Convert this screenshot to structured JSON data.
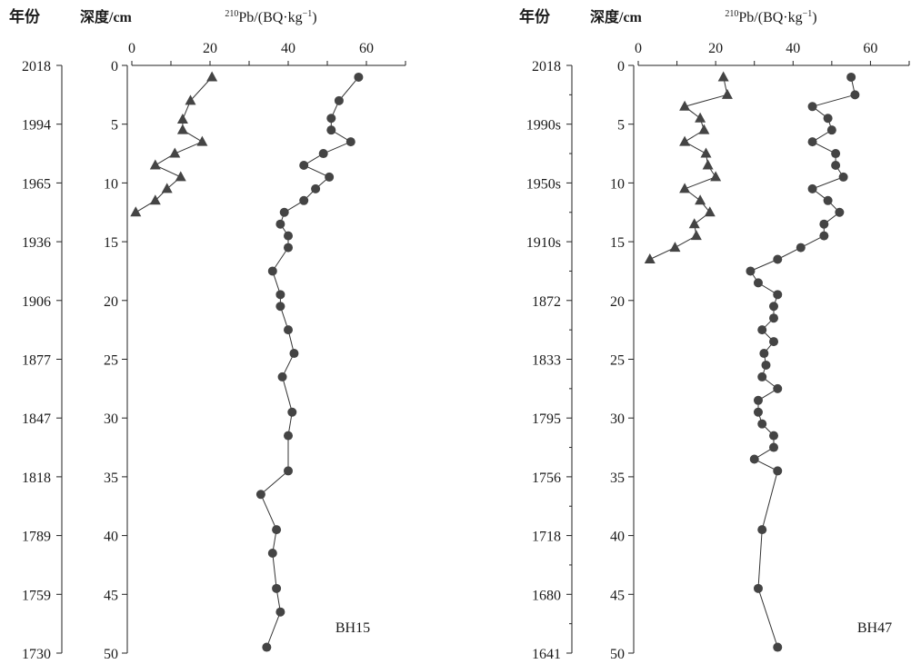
{
  "chart_data": [
    {
      "type": "scatter",
      "panel_label": "BH15",
      "header_year": "年份",
      "header_depth": "深度/cm",
      "x_title_sup": "210",
      "x_title_main": "Pb/(BQ·kg",
      "x_title_exp": "−1",
      "x_title_close": ")",
      "xlim": [
        0,
        70
      ],
      "ylim": [
        0,
        50
      ],
      "x_ticks": [
        0,
        20,
        40,
        60
      ],
      "depth_ticks": [
        0,
        5,
        10,
        15,
        20,
        25,
        30,
        35,
        40,
        45,
        50
      ],
      "year_ticks": [
        "2018",
        "1994",
        "1965",
        "1936",
        "1906",
        "1877",
        "1847",
        "1818",
        "1789",
        "1759",
        "1730"
      ],
      "series": [
        {
          "marker": "triangle",
          "points": [
            [
              20.5,
              1.0
            ],
            [
              15.0,
              3.0
            ],
            [
              13.0,
              4.6
            ],
            [
              13.0,
              5.5
            ],
            [
              18.0,
              6.5
            ],
            [
              11.0,
              7.5
            ],
            [
              6.0,
              8.5
            ],
            [
              12.5,
              9.5
            ],
            [
              9.0,
              10.5
            ],
            [
              6.0,
              11.5
            ],
            [
              1.0,
              12.5
            ]
          ]
        },
        {
          "marker": "circle",
          "points": [
            [
              58.0,
              1.0
            ],
            [
              53.0,
              3.0
            ],
            [
              51.0,
              4.5
            ],
            [
              51.0,
              5.5
            ],
            [
              56.0,
              6.5
            ],
            [
              49.0,
              7.5
            ],
            [
              44.0,
              8.5
            ],
            [
              50.5,
              9.5
            ],
            [
              47.0,
              10.5
            ],
            [
              44.0,
              11.5
            ],
            [
              39.0,
              12.5
            ],
            [
              38.0,
              13.5
            ],
            [
              40.0,
              14.5
            ],
            [
              40.0,
              15.5
            ],
            [
              36.0,
              17.5
            ],
            [
              38.0,
              19.5
            ],
            [
              38.0,
              20.5
            ],
            [
              40.0,
              22.5
            ],
            [
              41.5,
              24.5
            ],
            [
              38.5,
              26.5
            ],
            [
              41.0,
              29.5
            ],
            [
              40.0,
              31.5
            ],
            [
              40.0,
              34.5
            ],
            [
              33.0,
              36.5
            ],
            [
              37.0,
              39.5
            ],
            [
              36.0,
              41.5
            ],
            [
              37.0,
              44.5
            ],
            [
              38.0,
              46.5
            ],
            [
              34.5,
              49.5
            ]
          ]
        }
      ]
    },
    {
      "type": "scatter",
      "panel_label": "BH47",
      "header_year": "年份",
      "header_depth": "深度/cm",
      "x_title_sup": "210",
      "x_title_main": "Pb/(BQ·kg",
      "x_title_exp": "−1",
      "x_title_close": ")",
      "xlim": [
        0,
        70
      ],
      "ylim": [
        0,
        50
      ],
      "x_ticks": [
        0,
        20,
        40,
        60
      ],
      "depth_ticks": [
        0,
        5,
        10,
        15,
        20,
        25,
        30,
        35,
        40,
        45,
        50
      ],
      "year_ticks": [
        "2018",
        "",
        "1990s",
        "",
        "1950s",
        "",
        "1910s",
        "",
        "1872",
        "",
        "1833",
        "",
        "1795",
        "",
        "1756",
        "",
        "1718",
        "",
        "1680",
        "",
        "1641"
      ],
      "series": [
        {
          "marker": "triangle",
          "points": [
            [
              22.0,
              1.0
            ],
            [
              23.0,
              2.5
            ],
            [
              12.0,
              3.5
            ],
            [
              16.0,
              4.5
            ],
            [
              17.0,
              5.5
            ],
            [
              12.0,
              6.5
            ],
            [
              17.5,
              7.5
            ],
            [
              18.0,
              8.5
            ],
            [
              20.0,
              9.5
            ],
            [
              12.0,
              10.5
            ],
            [
              16.0,
              11.5
            ],
            [
              18.5,
              12.5
            ],
            [
              14.5,
              13.5
            ],
            [
              15.0,
              14.5
            ],
            [
              9.5,
              15.5
            ],
            [
              3.0,
              16.5
            ]
          ]
        },
        {
          "marker": "circle",
          "points": [
            [
              55.0,
              1.0
            ],
            [
              56.0,
              2.5
            ],
            [
              45.0,
              3.5
            ],
            [
              49.0,
              4.5
            ],
            [
              50.0,
              5.5
            ],
            [
              45.0,
              6.5
            ],
            [
              51.0,
              7.5
            ],
            [
              51.0,
              8.5
            ],
            [
              53.0,
              9.5
            ],
            [
              45.0,
              10.5
            ],
            [
              49.0,
              11.5
            ],
            [
              52.0,
              12.5
            ],
            [
              48.0,
              13.5
            ],
            [
              48.0,
              14.5
            ],
            [
              42.0,
              15.5
            ],
            [
              36.0,
              16.5
            ],
            [
              29.0,
              17.5
            ],
            [
              31.0,
              18.5
            ],
            [
              36.0,
              19.5
            ],
            [
              35.0,
              20.5
            ],
            [
              35.0,
              21.5
            ],
            [
              32.0,
              22.5
            ],
            [
              35.0,
              23.5
            ],
            [
              32.5,
              24.5
            ],
            [
              33.0,
              25.5
            ],
            [
              32.0,
              26.5
            ],
            [
              36.0,
              27.5
            ],
            [
              31.0,
              28.5
            ],
            [
              31.0,
              29.5
            ],
            [
              32.0,
              30.5
            ],
            [
              35.0,
              31.5
            ],
            [
              35.0,
              32.5
            ],
            [
              30.0,
              33.5
            ],
            [
              36.0,
              34.5
            ],
            [
              32.0,
              39.5
            ],
            [
              31.0,
              44.5
            ],
            [
              36.0,
              49.5
            ]
          ]
        }
      ]
    }
  ]
}
